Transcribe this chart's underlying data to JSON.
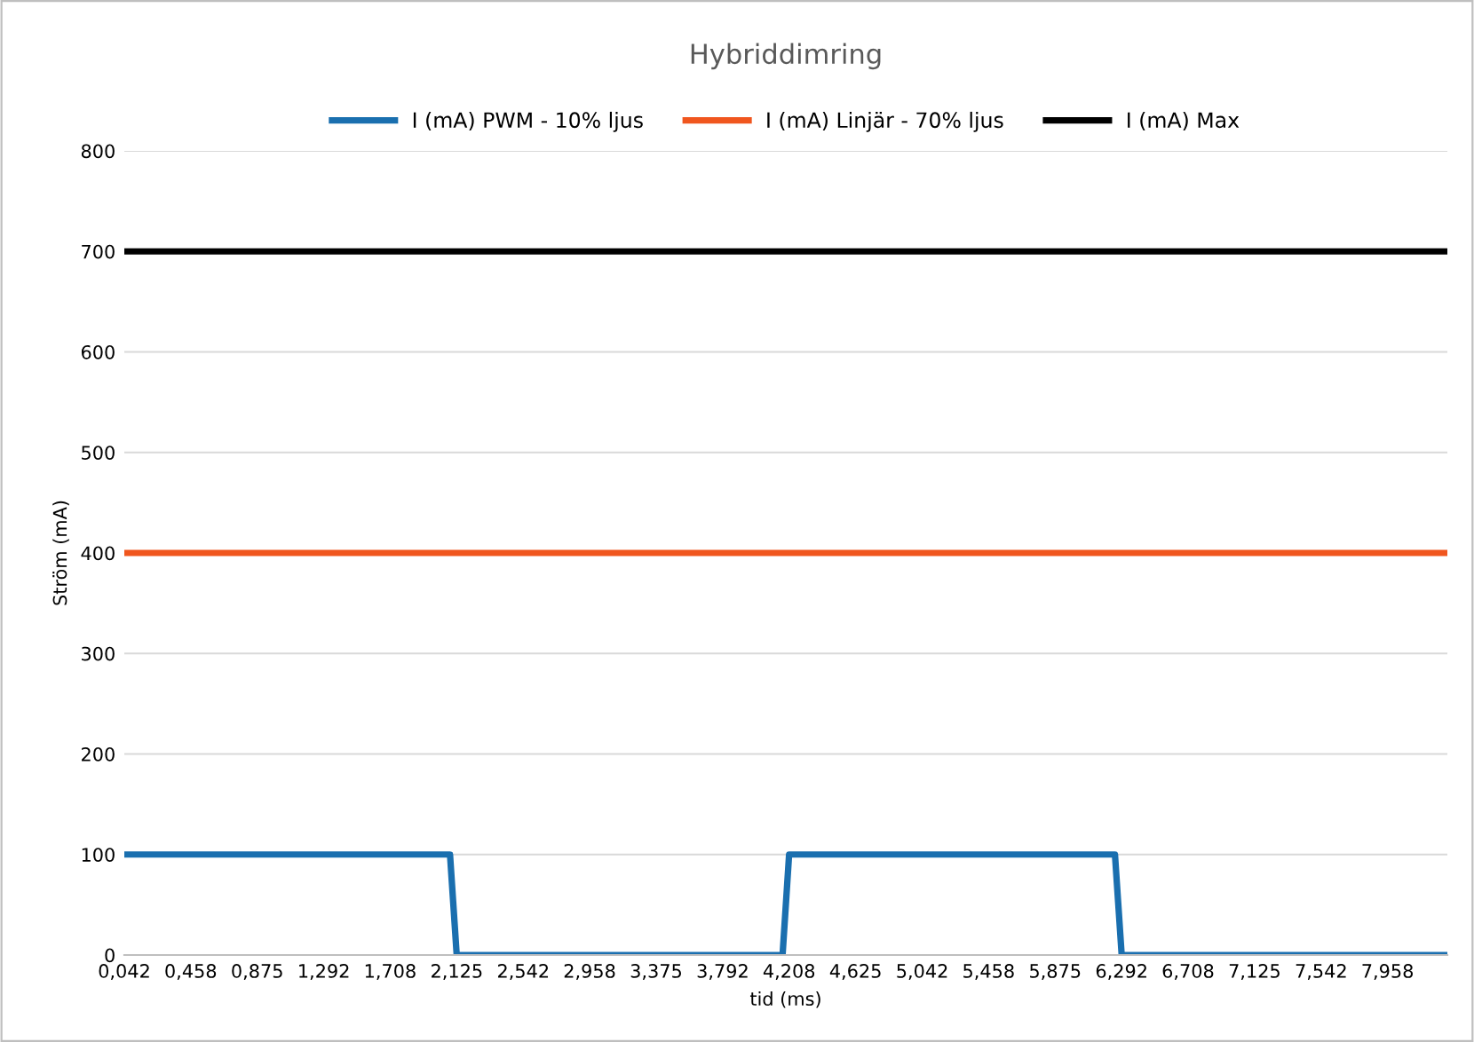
{
  "chart_data": {
    "type": "line",
    "title": "Hybriddimring",
    "xlabel": "tid (ms)",
    "ylabel": "Ström (mA)",
    "series": [
      {
        "name": "I (mA) PWM - 10% ljus",
        "color": "#1a6faf",
        "x": [
          0.042,
          2.083,
          2.125,
          4.167,
          4.208,
          6.25,
          6.292,
          8.333
        ],
        "values": [
          100,
          100,
          0,
          0,
          100,
          100,
          0,
          0
        ]
      },
      {
        "name": "I (mA) Linjär - 70% ljus",
        "color": "#f0561e",
        "x": [
          0.042,
          8.333
        ],
        "values": [
          400,
          400
        ]
      },
      {
        "name": "I (mA) Max",
        "color": "#000000",
        "x": [
          0.042,
          8.333
        ],
        "values": [
          700,
          700
        ]
      }
    ],
    "xlim": [
      0.042,
      8.333
    ],
    "xticks": [
      {
        "value": 0.042,
        "label": "0,042"
      },
      {
        "value": 0.458,
        "label": "0,458"
      },
      {
        "value": 0.875,
        "label": "0,875"
      },
      {
        "value": 1.292,
        "label": "1,292"
      },
      {
        "value": 1.708,
        "label": "1,708"
      },
      {
        "value": 2.125,
        "label": "2,125"
      },
      {
        "value": 2.542,
        "label": "2,542"
      },
      {
        "value": 2.958,
        "label": "2,958"
      },
      {
        "value": 3.375,
        "label": "3,375"
      },
      {
        "value": 3.792,
        "label": "3,792"
      },
      {
        "value": 4.208,
        "label": "4,208"
      },
      {
        "value": 4.625,
        "label": "4,625"
      },
      {
        "value": 5.042,
        "label": "5,042"
      },
      {
        "value": 5.458,
        "label": "5,458"
      },
      {
        "value": 5.875,
        "label": "5,875"
      },
      {
        "value": 6.292,
        "label": "6,292"
      },
      {
        "value": 6.708,
        "label": "6,708"
      },
      {
        "value": 7.125,
        "label": "7,125"
      },
      {
        "value": 7.542,
        "label": "7,542"
      },
      {
        "value": 7.958,
        "label": "7,958"
      }
    ],
    "ylim": [
      0,
      800
    ],
    "yticks": [
      0,
      100,
      200,
      300,
      400,
      500,
      600,
      700,
      800
    ],
    "grid": "y",
    "legend": "top",
    "marker": "none",
    "line_style": "solid"
  }
}
